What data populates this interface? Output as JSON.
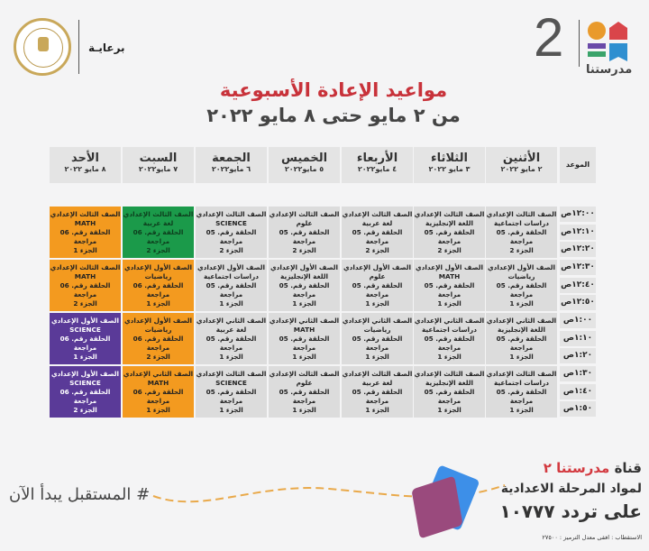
{
  "header": {
    "channel_number": "2",
    "brand_name": "مدرستنا",
    "sponsor_label": "برعايـة",
    "seal_text": "MINISTRY OF EDUCATION AND TECHNICAL EDUCATION",
    "title": "مواعيد الإعادة الأسبوعية",
    "subtitle": "من ٢ مايو حتى ٨ مايو ٢٠٢٢"
  },
  "colors": {
    "title": "#c8323a",
    "default_cell": "#dcdcdc",
    "orange": "#f39a1f",
    "green": "#1b9a4a",
    "purple": "#5a3a98"
  },
  "table": {
    "time_header": "الموعد",
    "days": [
      {
        "day": "الأثنين",
        "date": "٢ مايو ٢٠٢٢"
      },
      {
        "day": "الثلاثاء",
        "date": "٣ مايو ٢٠٢٢"
      },
      {
        "day": "الأربعاء",
        "date": "٤ مايو٢٠٢٢"
      },
      {
        "day": "الخميس",
        "date": "٥ مايو٢٠٢٢"
      },
      {
        "day": "الجمعة",
        "date": "٦ مايو٢٠٢٢"
      },
      {
        "day": "السبت",
        "date": "٧ مايو٢٠٢٢"
      },
      {
        "day": "الأحد",
        "date": "٨ مايو ٢٠٢٢"
      }
    ],
    "times": [
      "١٢:٠٠ص",
      "١٢:١٠ص",
      "١٢:٢٠ص",
      "١٢:٣٠ص",
      "١٢:٤٠ص",
      "١٢:٥٠ص",
      "١:٠٠ص",
      "١:١٠ص",
      "١:٢٠ص",
      "١:٣٠ص",
      "١:٤٠ص",
      "١:٥٠ص"
    ],
    "rows": [
      [
        {
          "grade": "الصف الثالث الإعدادي",
          "subject": "دراسات اجتماعية",
          "episode": "الحلقة رقم. 05 مراجعة",
          "part": "الجزء 2",
          "color": "default"
        },
        {
          "grade": "الصف الثالث الإعدادي",
          "subject": "اللغة الإنجليزية",
          "episode": "الحلقة رقم. 05 مراجعة",
          "part": "الجزء 2",
          "color": "default"
        },
        {
          "grade": "الصف الثالث الإعدادي",
          "subject": "لغة عربية",
          "episode": "الحلقة رقم. 05 مراجعة",
          "part": "الجزء 2",
          "color": "default"
        },
        {
          "grade": "الصف الثالث الإعدادي",
          "subject": "علوم",
          "episode": "الحلقة رقم. 05 مراجعة",
          "part": "الجزء 2",
          "color": "default"
        },
        {
          "grade": "الصف الثالث الإعدادي",
          "subject": "SCIENCE",
          "episode": "الحلقة رقم. 05 مراجعة",
          "part": "الجزء 2",
          "color": "default"
        },
        {
          "grade": "الصف الثالث الإعدادي",
          "subject": "لغة عربية",
          "episode": "الحلقة رقم. 06 مراجعة",
          "part": "الجزء 2",
          "color": "green"
        },
        {
          "grade": "الصف الثالث الإعدادي",
          "subject": "MATH",
          "episode": "الحلقة رقم. 06 مراجعة",
          "part": "الجزء 1",
          "color": "orange"
        }
      ],
      [
        {
          "grade": "الصف الأول الإعدادي",
          "subject": "رياضيات",
          "episode": "الحلقة رقم. 05 مراجعة",
          "part": "الجزء 1",
          "color": "default"
        },
        {
          "grade": "الصف الأول الإعدادي",
          "subject": "MATH",
          "episode": "الحلقة رقم. 05 مراجعة",
          "part": "الجزء 1",
          "color": "default"
        },
        {
          "grade": "الصف الأول الإعدادي",
          "subject": "علوم",
          "episode": "الحلقة رقم. 05 مراجعة",
          "part": "الجزء 1",
          "color": "default"
        },
        {
          "grade": "الصف الأول الإعدادي",
          "subject": "اللغة الإنجليزية",
          "episode": "الحلقة رقم. 05 مراجعة",
          "part": "الجزء 1",
          "color": "default"
        },
        {
          "grade": "الصف الأول الإعدادي",
          "subject": "دراسات اجتماعية",
          "episode": "الحلقة رقم. 05 مراجعة",
          "part": "الجزء 1",
          "color": "default"
        },
        {
          "grade": "الصف الأول الإعدادي",
          "subject": "رياضيات",
          "episode": "الحلقة رقم. 06 مراجعة",
          "part": "الجزء 1",
          "color": "orange"
        },
        {
          "grade": "الصف الثالث الإعدادي",
          "subject": "MATH",
          "episode": "الحلقة رقم. 06 مراجعة",
          "part": "الجزء 2",
          "color": "orange"
        }
      ],
      [
        {
          "grade": "الصف الثاني الإعدادي",
          "subject": "اللغة الإنجليزية",
          "episode": "الحلقة رقم. 05 مراجعة",
          "part": "الجزء 1",
          "color": "default"
        },
        {
          "grade": "الصف الثاني الإعدادي",
          "subject": "دراسات اجتماعية",
          "episode": "الحلقة رقم. 05 مراجعة",
          "part": "الجزء 1",
          "color": "default"
        },
        {
          "grade": "الصف الثاني الإعدادي",
          "subject": "رياضيات",
          "episode": "الحلقة رقم. 05 مراجعة",
          "part": "الجزء 1",
          "color": "default"
        },
        {
          "grade": "الصف الثاني الإعدادي",
          "subject": "MATH",
          "episode": "الحلقة رقم. 05 مراجعة",
          "part": "الجزء 1",
          "color": "default"
        },
        {
          "grade": "الصف الثاني الإعدادي",
          "subject": "لغة عربية",
          "episode": "الحلقة رقم. 05 مراجعة",
          "part": "الجزء 1",
          "color": "default"
        },
        {
          "grade": "الصف الأول الإعدادي",
          "subject": "رياضيات",
          "episode": "الحلقة رقم. 06 مراجعة",
          "part": "الجزء 2",
          "color": "orange"
        },
        {
          "grade": "الصف الأول الإعدادي",
          "subject": "SCIENCE",
          "episode": "الحلقة رقم. 06 مراجعة",
          "part": "الجزء 1",
          "color": "purple"
        }
      ],
      [
        {
          "grade": "الصف الثالث الإعدادي",
          "subject": "دراسات اجتماعية",
          "episode": "الحلقة رقم. 05 مراجعة",
          "part": "الجزء 1",
          "color": "default"
        },
        {
          "grade": "الصف الثالث الإعدادي",
          "subject": "اللغة الإنجليزية",
          "episode": "الحلقة رقم. 05 مراجعة",
          "part": "الجزء 1",
          "color": "default"
        },
        {
          "grade": "الصف الثالث الإعدادي",
          "subject": "لغة عربية",
          "episode": "الحلقة رقم. 05 مراجعة",
          "part": "الجزء 1",
          "color": "default"
        },
        {
          "grade": "الصف الثالث الإعدادي",
          "subject": "علوم",
          "episode": "الحلقة رقم. 05 مراجعة",
          "part": "الجزء 1",
          "color": "default"
        },
        {
          "grade": "الصف الثالث الإعدادي",
          "subject": "SCIENCE",
          "episode": "الحلقة رقم. 05 مراجعة",
          "part": "الجزء 1",
          "color": "default"
        },
        {
          "grade": "الصف الثاني الإعدادي",
          "subject": "MATH",
          "episode": "الحلقة رقم. 06 مراجعة",
          "part": "الجزء 1",
          "color": "orange"
        },
        {
          "grade": "الصف الأول الإعدادي",
          "subject": "SCIENCE",
          "episode": "الحلقة رقم. 06 مراجعة",
          "part": "الجزء 2",
          "color": "purple"
        }
      ]
    ]
  },
  "footer": {
    "channel_prefix": "قناة",
    "channel_name": "مدرستنا ٢",
    "line2": "لمواد المرحلة الاعدادية",
    "frequency": "على تردد ١٠٧٧٧",
    "tech_info": "الاستقطاب : افقى معدل الترميز : ٢٧٥٠٠",
    "hashtag": "# المستقبل يبدأ الآن"
  }
}
